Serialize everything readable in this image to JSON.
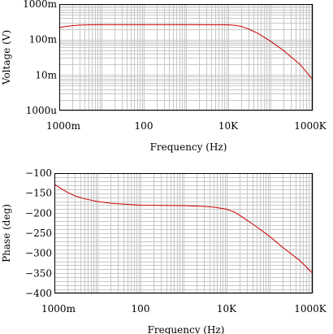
{
  "chart_data": [
    {
      "type": "line",
      "xlabel": "Frequency (Hz)",
      "ylabel": "Voltage (V)",
      "xscale": "log",
      "yscale": "log",
      "xlim": [
        1,
        1000000
      ],
      "ylim": [
        0.001,
        1
      ],
      "grid": true,
      "x_ticks": [
        {
          "v": 1,
          "label": "1000m"
        },
        {
          "v": 100,
          "label": "100"
        },
        {
          "v": 10000,
          "label": "10K"
        },
        {
          "v": 1000000,
          "label": "1000K"
        }
      ],
      "y_ticks": [
        {
          "v": 1,
          "label": "1000m"
        },
        {
          "v": 0.1,
          "label": "100m"
        },
        {
          "v": 0.01,
          "label": "10m"
        },
        {
          "v": 0.001,
          "label": "1000u"
        }
      ],
      "series": [
        {
          "color": "#cc0000",
          "x": [
            1,
            1.5,
            2,
            3,
            5,
            10,
            100,
            1000,
            10000,
            15000,
            20000,
            30000,
            50000,
            100000,
            200000,
            500000,
            1000000
          ],
          "y": [
            0.22,
            0.235,
            0.245,
            0.255,
            0.26,
            0.262,
            0.262,
            0.262,
            0.26,
            0.25,
            0.235,
            0.2,
            0.15,
            0.09,
            0.05,
            0.02,
            0.0075
          ]
        }
      ]
    },
    {
      "type": "line",
      "xlabel": "Frequency (Hz)",
      "ylabel": "Phase (deg)",
      "xscale": "log",
      "xlim": [
        1,
        1000000
      ],
      "ylim": [
        -400,
        -100
      ],
      "grid": true,
      "x_ticks": [
        {
          "v": 1,
          "label": "1000m"
        },
        {
          "v": 100,
          "label": "100"
        },
        {
          "v": 10000,
          "label": "10K"
        },
        {
          "v": 1000000,
          "label": "1000K"
        }
      ],
      "y_ticks": [
        {
          "v": -100,
          "label": "−100"
        },
        {
          "v": -150,
          "label": "−150"
        },
        {
          "v": -200,
          "label": "−200"
        },
        {
          "v": -250,
          "label": "−250"
        },
        {
          "v": -300,
          "label": "−300"
        },
        {
          "v": -350,
          "label": "−350"
        },
        {
          "v": -400,
          "label": "−400"
        }
      ],
      "series": [
        {
          "color": "#cc0000",
          "x": [
            1,
            1.5,
            2,
            3,
            5,
            10,
            20,
            50,
            100,
            1000,
            3000,
            5000,
            10000,
            15000,
            20000,
            30000,
            50000,
            100000,
            200000,
            500000,
            1000000
          ],
          "y": [
            -128,
            -140,
            -148,
            -157,
            -164,
            -171,
            -175,
            -178,
            -180,
            -181,
            -183,
            -185,
            -190,
            -197,
            -205,
            -218,
            -234,
            -258,
            -285,
            -318,
            -350
          ]
        }
      ]
    }
  ]
}
